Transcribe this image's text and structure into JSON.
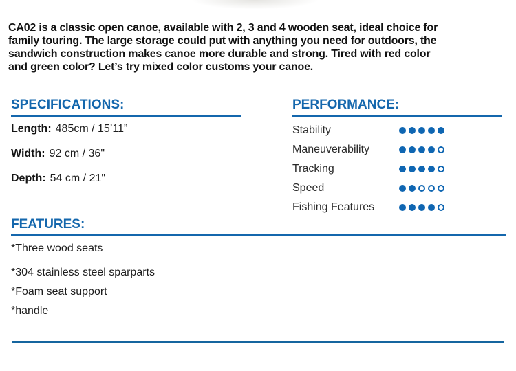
{
  "intro": {
    "text": "CA02 is a classic open canoe, available with 2, 3 and 4 wooden seat, ideal choice for\nfamily touring. The large storage could put with anything you need for outdoors, the\nsandwich construction makes canoe more durable and strong. Tired with red color\nand green color? Let’s try mixed color customs your canoe."
  },
  "specifications": {
    "heading": "SPECIFICATIONS:",
    "items": [
      {
        "label": "Length:",
        "value": "485cm / 15’11”"
      },
      {
        "label": "Width:",
        "value": "92 cm / 36\""
      },
      {
        "label": "Depth:",
        "value": "54 cm / 21\""
      }
    ]
  },
  "performance": {
    "heading": "PERFORMANCE:",
    "max_rating": 5,
    "items": [
      {
        "label": "Stability",
        "rating": 5
      },
      {
        "label": "Maneuverability",
        "rating": 4
      },
      {
        "label": "Tracking",
        "rating": 4
      },
      {
        "label": "Speed",
        "rating": 2
      },
      {
        "label": "Fishing Features",
        "rating": 4
      }
    ]
  },
  "features": {
    "heading": "FEATURES:",
    "items": [
      "*Three wood seats",
      "*304 stainless steel sparparts",
      "*Foam seat support",
      "*handle"
    ]
  },
  "colors": {
    "accent_blue": "#1467ad",
    "dot_blue": "#0f66b2",
    "line_blue": "#15659f",
    "text_black": "#141414"
  }
}
